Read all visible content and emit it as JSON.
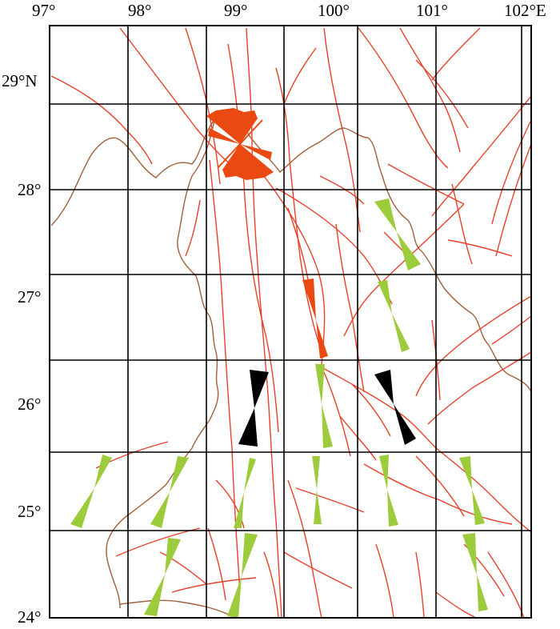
{
  "map": {
    "top_labels": [
      "97°",
      "98°",
      "99°",
      "100°",
      "101°",
      "102°E"
    ],
    "left_labels": [
      "29°N",
      "28°",
      "27°",
      "26°",
      "25°",
      "24°"
    ]
  },
  "colors": {
    "fault": "#e8412a",
    "border": "#a0603a",
    "rose_orange": "#ea4a12",
    "rose_green": "#9ccb3c",
    "rose_black": "#000000",
    "grid": "#000000"
  },
  "rose_diagrams": [
    {
      "color": "orange",
      "style": "fan"
    },
    {
      "color": "orange",
      "style": "bowtie"
    },
    {
      "color": "green",
      "style": "bowtie"
    },
    {
      "color": "green",
      "style": "bowtie"
    },
    {
      "color": "black",
      "style": "bowtie"
    },
    {
      "color": "green",
      "style": "bowtie"
    },
    {
      "color": "black",
      "style": "bowtie"
    },
    {
      "color": "green",
      "style": "bowtie"
    },
    {
      "color": "green",
      "style": "bowtie"
    },
    {
      "color": "green",
      "style": "bowtie"
    },
    {
      "color": "green",
      "style": "bowtie"
    },
    {
      "color": "green",
      "style": "bowtie"
    },
    {
      "color": "green",
      "style": "bowtie"
    },
    {
      "color": "green",
      "style": "bowtie"
    },
    {
      "color": "green",
      "style": "bowtie"
    },
    {
      "color": "green",
      "style": "bowtie"
    },
    {
      "color": "green",
      "style": "bowtie"
    }
  ]
}
